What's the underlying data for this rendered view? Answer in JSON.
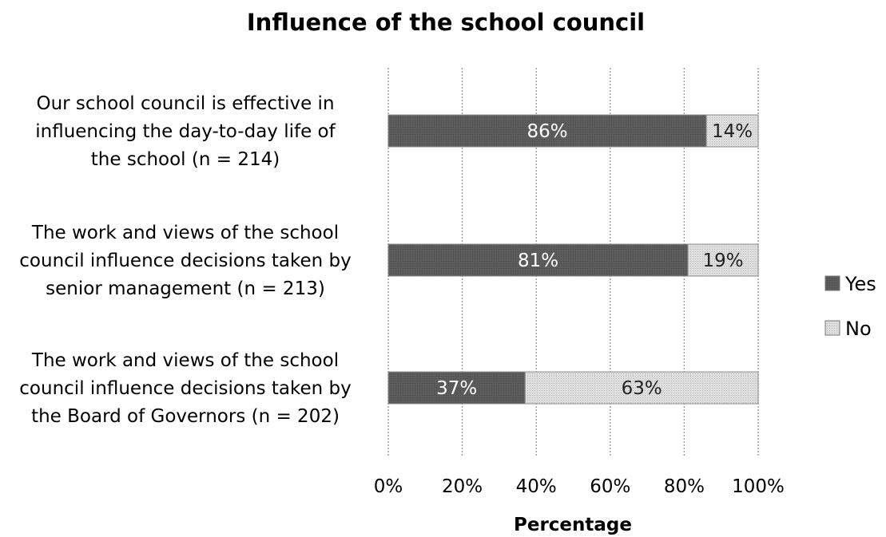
{
  "chart_data": {
    "type": "bar",
    "orientation": "horizontal",
    "stacked": true,
    "title": "Influence of the school council",
    "xlabel": "Percentage",
    "ylabel": "",
    "xlim": [
      0,
      100
    ],
    "ticks": [
      "0%",
      "20%",
      "40%",
      "60%",
      "80%",
      "100%"
    ],
    "tick_values": [
      0,
      20,
      40,
      60,
      80,
      100
    ],
    "grid": true,
    "legend_position": "right",
    "categories": [
      [
        "Our school council is effective in",
        "influencing the day-to-day life of",
        "the school (n = 214)"
      ],
      [
        "The work and views of the school",
        "council influence decisions taken by",
        "senior management (n = 213)"
      ],
      [
        "The work and views of the school",
        "council influence decisions taken by",
        "the Board of Governors (n = 202)"
      ]
    ],
    "series": [
      {
        "name": "Yes",
        "values": [
          86,
          81,
          37
        ],
        "labels": [
          "86%",
          "81%",
          "37%"
        ],
        "color": "#5a5a5a"
      },
      {
        "name": "No",
        "values": [
          14,
          19,
          63
        ],
        "labels": [
          "14%",
          "19%",
          "63%"
        ],
        "color": "#d9d9d9"
      }
    ]
  }
}
